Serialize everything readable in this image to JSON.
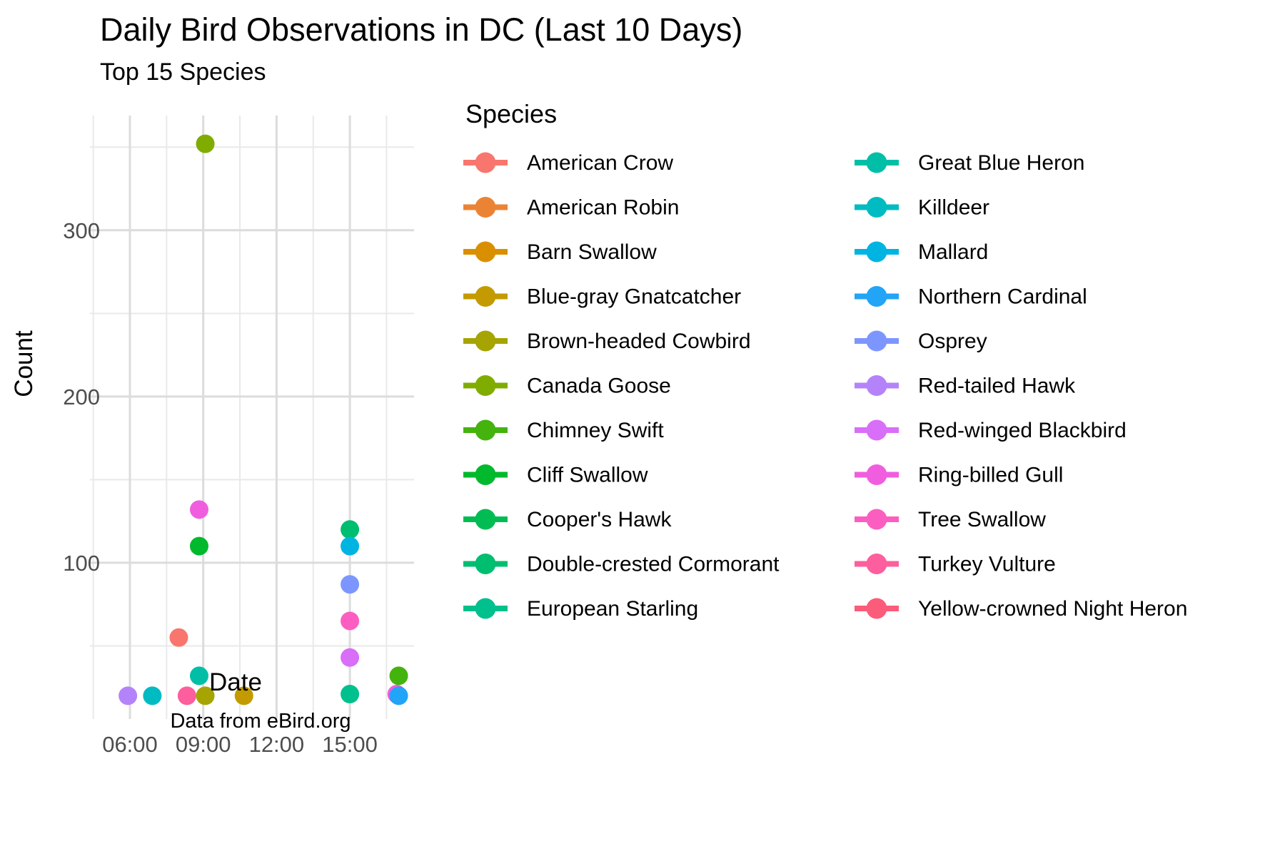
{
  "chart_data": {
    "type": "scatter",
    "title": "Daily Bird Observations in DC (Last 10 Days)",
    "subtitle": "Top 15 Species",
    "xlabel": "Date",
    "ylabel": "Count",
    "caption": "Data from eBird.org",
    "legend_title": "Species",
    "grid": "on",
    "legend_position": "right",
    "x_axis": {
      "type": "time",
      "domain_minutes": [
        262,
        1058
      ],
      "major_ticks": [
        "06:00",
        "09:00",
        "12:00",
        "15:00"
      ],
      "minor_ticks": [
        "04:30",
        "07:30",
        "10:30",
        "13:30",
        "16:30"
      ]
    },
    "y_axis": {
      "domain": [
        6,
        369
      ],
      "major_ticks": [
        100,
        200,
        300
      ],
      "minor_ticks": [
        50,
        150,
        250,
        350
      ]
    },
    "points": [
      {
        "species": "Red-tailed Hawk",
        "time": "05:55",
        "count": 20
      },
      {
        "species": "Killdeer",
        "time": "06:55",
        "count": 20
      },
      {
        "species": "American Crow",
        "time": "08:00",
        "count": 55
      },
      {
        "species": "Turkey Vulture",
        "time": "08:20",
        "count": 20
      },
      {
        "species": "Great Blue Heron",
        "time": "08:50",
        "count": 32
      },
      {
        "species": "Ring-billed Gull",
        "time": "08:50",
        "count": 132
      },
      {
        "species": "Cliff Swallow",
        "time": "08:50",
        "count": 110
      },
      {
        "species": "Canada Goose",
        "time": "09:05",
        "count": 352
      },
      {
        "species": "Brown-headed Cowbird",
        "time": "09:05",
        "count": 20
      },
      {
        "species": "Blue-gray Gnatcatcher",
        "time": "10:40",
        "count": 20
      },
      {
        "species": "Double-crested Cormorant",
        "time": "15:00",
        "count": 120
      },
      {
        "species": "Mallard",
        "time": "15:00",
        "count": 110
      },
      {
        "species": "Osprey",
        "time": "15:00",
        "count": 87
      },
      {
        "species": "Tree Swallow",
        "time": "15:00",
        "count": 65
      },
      {
        "species": "Red-winged Blackbird",
        "time": "15:00",
        "count": 43
      },
      {
        "species": "European Starling",
        "time": "15:00",
        "count": 21
      },
      {
        "species": "Ring-billed Gull",
        "time": "16:55",
        "count": 21
      },
      {
        "species": "Chimney Swift",
        "time": "17:00",
        "count": 32
      },
      {
        "species": "Northern Cardinal",
        "time": "17:00",
        "count": 20
      }
    ],
    "legend_columns": [
      [
        "American Crow",
        "American Robin",
        "Barn Swallow",
        "Blue-gray Gnatcatcher",
        "Brown-headed Cowbird",
        "Canada Goose",
        "Chimney Swift",
        "Cliff Swallow",
        "Cooper's Hawk",
        "Double-crested Cormorant",
        "European Starling"
      ],
      [
        "Great Blue Heron",
        "Killdeer",
        "Mallard",
        "Northern Cardinal",
        "Osprey",
        "Red-tailed Hawk",
        "Red-winged Blackbird",
        "Ring-billed Gull",
        "Tree Swallow",
        "Turkey Vulture",
        "Yellow-crowned Night Heron"
      ]
    ],
    "palette": {
      "American Crow": "#F8766D",
      "American Robin": "#EB8335",
      "Barn Swallow": "#DA8F00",
      "Blue-gray Gnatcatcher": "#C39B00",
      "Brown-headed Cowbird": "#A5A400",
      "Canada Goose": "#80AC00",
      "Chimney Swift": "#44B30E",
      "Cliff Swallow": "#00B92C",
      "Cooper's Hawk": "#00BC52",
      "Double-crested Cormorant": "#00BE70",
      "European Starling": "#00C08D",
      "Great Blue Heron": "#00BFA6",
      "Killdeer": "#00BBC2",
      "Mallard": "#00B4E2",
      "Northern Cardinal": "#22A4F7",
      "Osprey": "#7D96FF",
      "Red-tailed Hawk": "#B483FA",
      "Red-winged Blackbird": "#D96EF8",
      "Ring-billed Gull": "#F05EDF",
      "Tree Swallow": "#FB5EC0",
      "Turkey Vulture": "#FD5E9E",
      "Yellow-crowned Night Heron": "#FB5C79"
    }
  },
  "colors": {
    "background": "#FFFFFF",
    "grid_major": "#DCDCDC",
    "grid_minor": "#E9E9E9",
    "tick_label_color": "#4D4D4D",
    "text_color": "#000000"
  }
}
